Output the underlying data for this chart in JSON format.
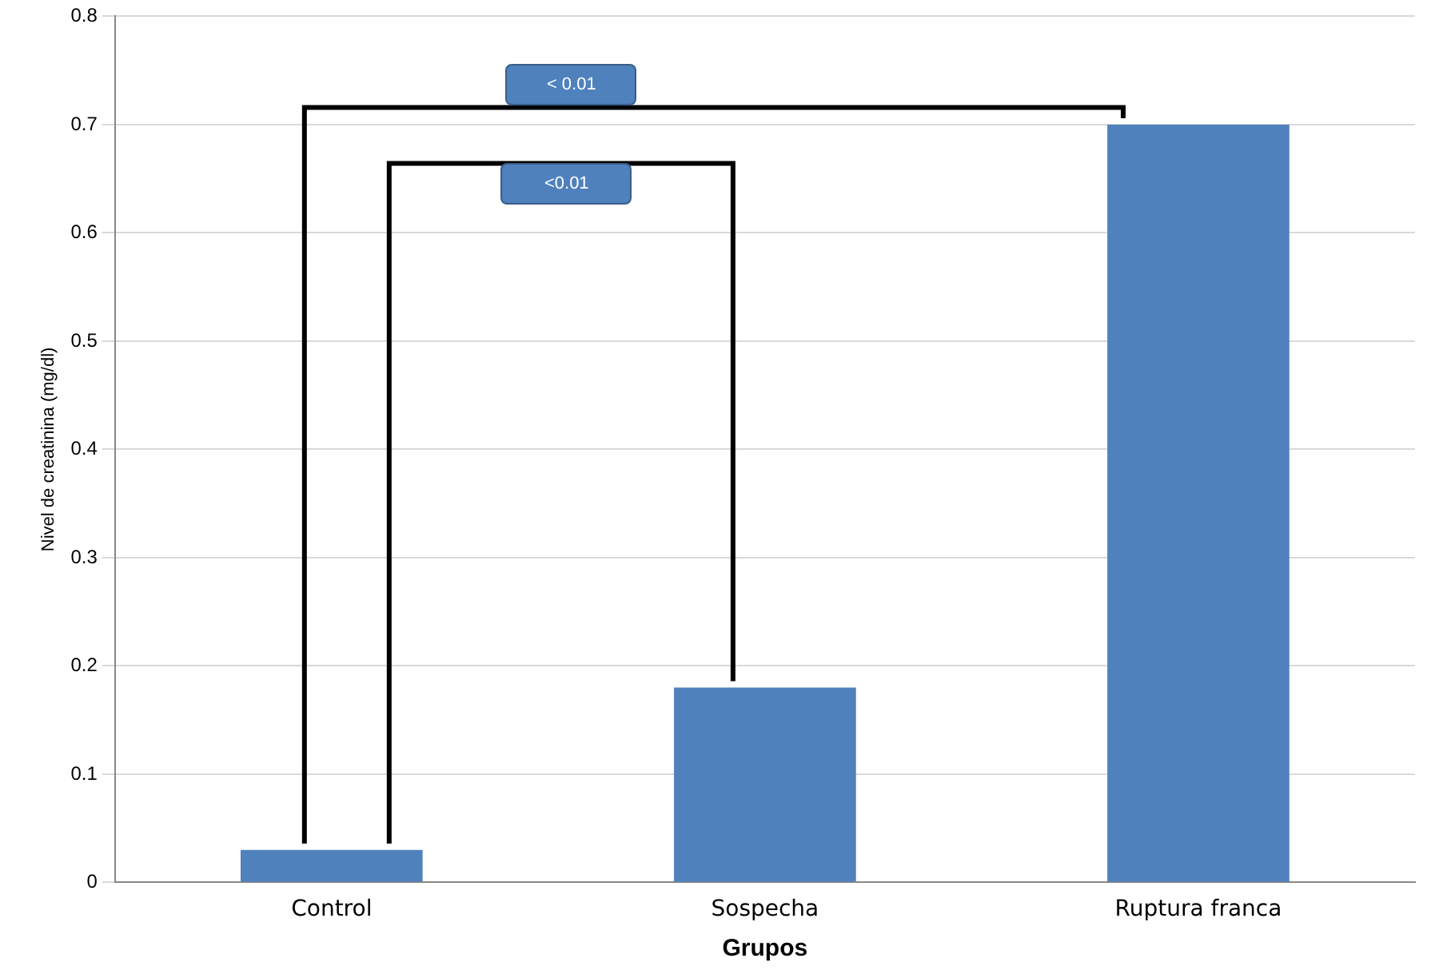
{
  "chart_data": {
    "type": "bar",
    "xlabel": "Grupos",
    "ylabel": "Nivel de creatinina (mg/dl)",
    "categories": [
      "Control",
      "Sospecha",
      "Ruptura franca"
    ],
    "values": [
      0.03,
      0.18,
      0.7
    ],
    "color": "#4f81bd",
    "ylim": [
      0,
      0.8
    ],
    "yticks": [
      0,
      0.1,
      0.2,
      0.3,
      0.4,
      0.5,
      0.6,
      0.7,
      0.8
    ],
    "grid": "y",
    "legend": false,
    "annotations": [
      "< 0.01",
      "<0.01"
    ]
  }
}
